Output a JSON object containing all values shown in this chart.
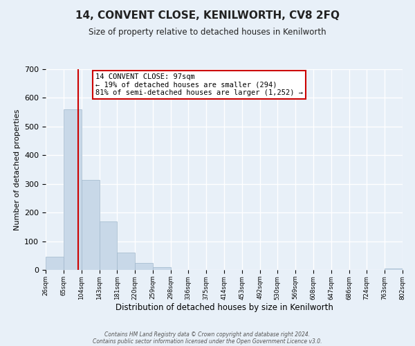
{
  "title": "14, CONVENT CLOSE, KENILWORTH, CV8 2FQ",
  "subtitle": "Size of property relative to detached houses in Kenilworth",
  "xlabel": "Distribution of detached houses by size in Kenilworth",
  "ylabel": "Number of detached properties",
  "bin_edges": [
    26,
    65,
    104,
    143,
    181,
    220,
    259,
    298,
    336,
    375,
    414,
    453,
    492,
    530,
    569,
    608,
    647,
    686,
    724,
    763,
    802
  ],
  "bar_heights": [
    45,
    560,
    315,
    170,
    60,
    25,
    10,
    0,
    0,
    0,
    0,
    0,
    0,
    0,
    0,
    0,
    0,
    0,
    0,
    5
  ],
  "bar_color": "#c8d8e8",
  "bar_edgecolor": "#a0b8cc",
  "ylim": [
    0,
    700
  ],
  "yticks": [
    0,
    100,
    200,
    300,
    400,
    500,
    600,
    700
  ],
  "property_line_x": 97,
  "property_line_color": "#cc0000",
  "annotation_text": "14 CONVENT CLOSE: 97sqm\n← 19% of detached houses are smaller (294)\n81% of semi-detached houses are larger (1,252) →",
  "annotation_box_color": "#ffffff",
  "annotation_box_edgecolor": "#cc0000",
  "footer_line1": "Contains HM Land Registry data © Crown copyright and database right 2024.",
  "footer_line2": "Contains public sector information licensed under the Open Government Licence v3.0.",
  "tick_labels": [
    "26sqm",
    "65sqm",
    "104sqm",
    "143sqm",
    "181sqm",
    "220sqm",
    "259sqm",
    "298sqm",
    "336sqm",
    "375sqm",
    "414sqm",
    "453sqm",
    "492sqm",
    "530sqm",
    "569sqm",
    "608sqm",
    "647sqm",
    "686sqm",
    "724sqm",
    "763sqm",
    "802sqm"
  ],
  "background_color": "#e8f0f8",
  "plot_bg_color": "#e8f0f8",
  "grid_color": "#ffffff"
}
